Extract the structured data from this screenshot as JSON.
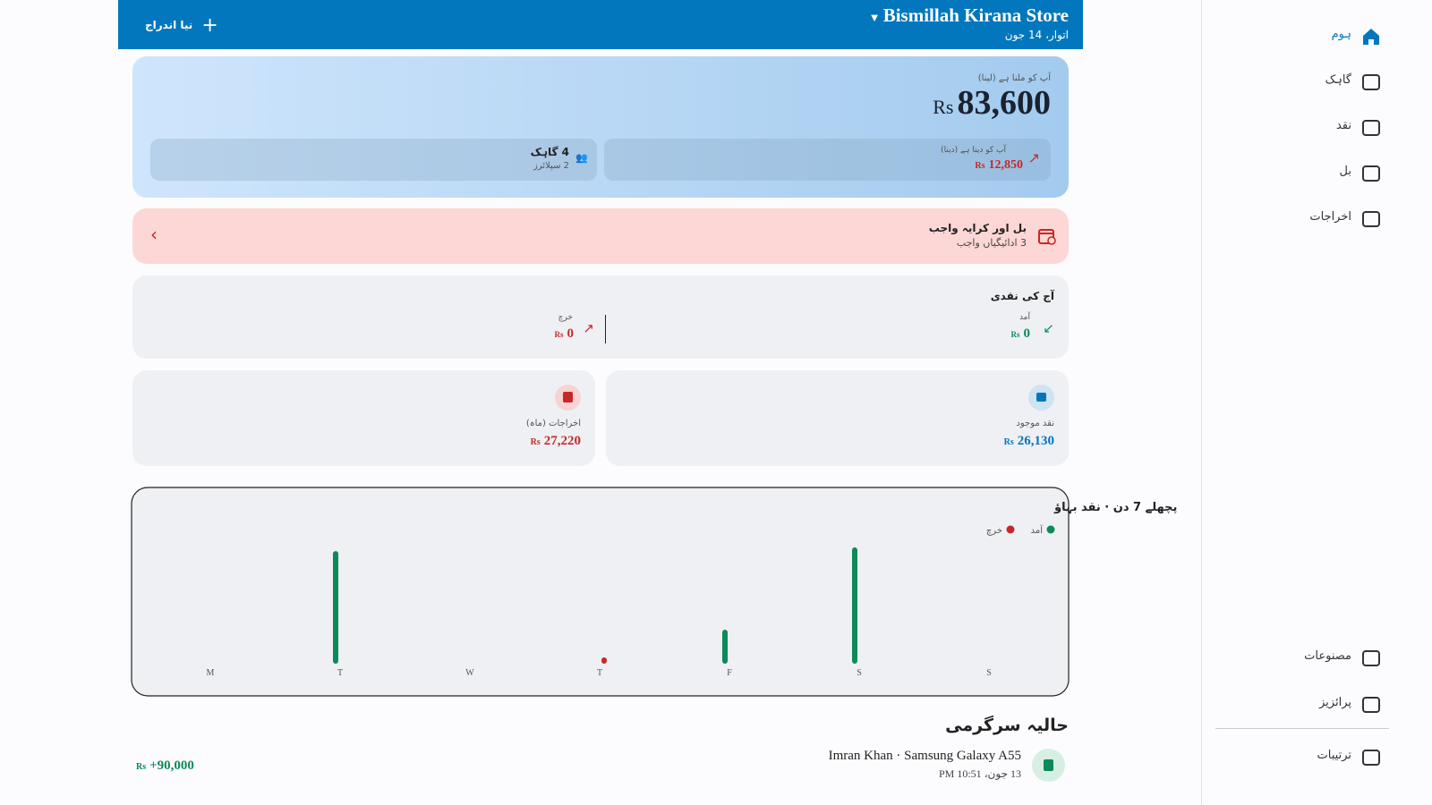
{
  "header": {
    "store_name": "Bismillah Kirana Store",
    "date": "اتوار، 14 جون",
    "new_entry": "نیا اندراج"
  },
  "receivable": {
    "label": "آپ کو ملنا ہے (لینا)",
    "currency": "Rs",
    "amount": "83,600",
    "payable_label": "آپ کو دینا ہے (دینا)",
    "payable_currency": "Rs",
    "payable_amount": "12,850",
    "customers": "4 گاہک",
    "suppliers": "2 سپلائرز"
  },
  "alert": {
    "title": "بل اور کرایہ واجب",
    "subtitle": "3 ادائیگیاں واجب"
  },
  "today_cash": {
    "title": "آج کی نقدی",
    "in_label": "آمد",
    "in_currency": "Rs",
    "in_amount": "0",
    "out_label": "خرچ",
    "out_currency": "Rs",
    "out_amount": "0"
  },
  "stats": [
    {
      "label": "نقد موجود",
      "currency": "Rs",
      "amount": "26,130"
    },
    {
      "label": "اخراجات (ماہ)",
      "currency": "Rs",
      "amount": "27,220"
    }
  ],
  "chart_data": {
    "type": "bar",
    "title": "پچھلے 7 دن · نقد بہاؤ",
    "categories": [
      "M",
      "T",
      "W",
      "T",
      "F",
      "S",
      "S"
    ],
    "series": [
      {
        "name": "آمد",
        "color": "#0b8a5a",
        "values": [
          0,
          58000,
          0,
          0,
          15500,
          60000,
          0
        ]
      },
      {
        "name": "خرچ",
        "color": "#c62828",
        "values": [
          0,
          0,
          0,
          500,
          0,
          0,
          0
        ]
      }
    ]
  },
  "activity": {
    "title": "حالیہ سرگرمی",
    "items": [
      {
        "title": "Imran Khan · Samsung Galaxy A55",
        "time": "13 جون، 10:51 PM",
        "currency": "Rs",
        "amount": "+90,000"
      }
    ]
  },
  "sidebar": {
    "items": [
      "ہوم",
      "گاہک",
      "نقد",
      "بل",
      "اخراجات"
    ],
    "bottom_items": [
      "مصنوعات",
      "پرائزیز",
      "ترتیبات"
    ]
  }
}
